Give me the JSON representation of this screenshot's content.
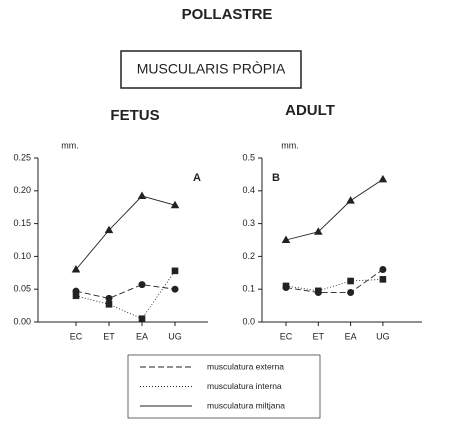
{
  "title": "POLLASTRE",
  "subtitle": "MUSCULARIS PRÒPIA",
  "chart_data": [
    {
      "type": "line",
      "title": "FETUS",
      "panel_label": "A",
      "ylabel": "mm.",
      "categories": [
        "EC",
        "ET",
        "EA",
        "UG"
      ],
      "ylim": [
        0,
        0.25
      ],
      "yticks": [
        {
          "value": 0,
          "label": "0.00"
        },
        0.05,
        {
          "value": 0.1,
          "label": "0.10"
        },
        0.15,
        {
          "value": 0.2,
          "label": "0.20"
        },
        0.25
      ],
      "series": [
        {
          "name": "musculatura externa",
          "color": "#222222",
          "line": "dashed",
          "marker": "circle",
          "values": [
            0.047,
            0.036,
            0.057,
            0.05
          ]
        },
        {
          "name": "musculatura interna",
          "color": "#222222",
          "line": "dotted",
          "marker": "square",
          "values": [
            0.04,
            0.027,
            0.005,
            0.078
          ]
        },
        {
          "name": "musculatura miltjana",
          "color": "#222222",
          "line": "solid",
          "marker": "triangle",
          "values": [
            0.08,
            0.14,
            0.192,
            0.178
          ]
        }
      ]
    },
    {
      "type": "line",
      "title": "ADULT",
      "panel_label": "B",
      "ylabel": "mm.",
      "categories": [
        "EC",
        "ET",
        "EA",
        "UG"
      ],
      "ylim": [
        0,
        0.5
      ],
      "yticks": [
        {
          "value": 0,
          "label": "0.0"
        },
        0.1,
        0.2,
        0.3,
        0.4,
        0.5
      ],
      "series": [
        {
          "name": "musculatura externa",
          "color": "#222222",
          "line": "dashed",
          "marker": "circle",
          "values": [
            0.105,
            0.09,
            0.09,
            0.16
          ]
        },
        {
          "name": "musculatura interna",
          "color": "#222222",
          "line": "dotted",
          "marker": "square",
          "values": [
            0.11,
            0.095,
            0.125,
            0.13
          ]
        },
        {
          "name": "musculatura miltjana",
          "color": "#222222",
          "line": "solid",
          "marker": "triangle",
          "values": [
            0.25,
            0.275,
            0.37,
            0.435
          ]
        }
      ]
    }
  ]
}
